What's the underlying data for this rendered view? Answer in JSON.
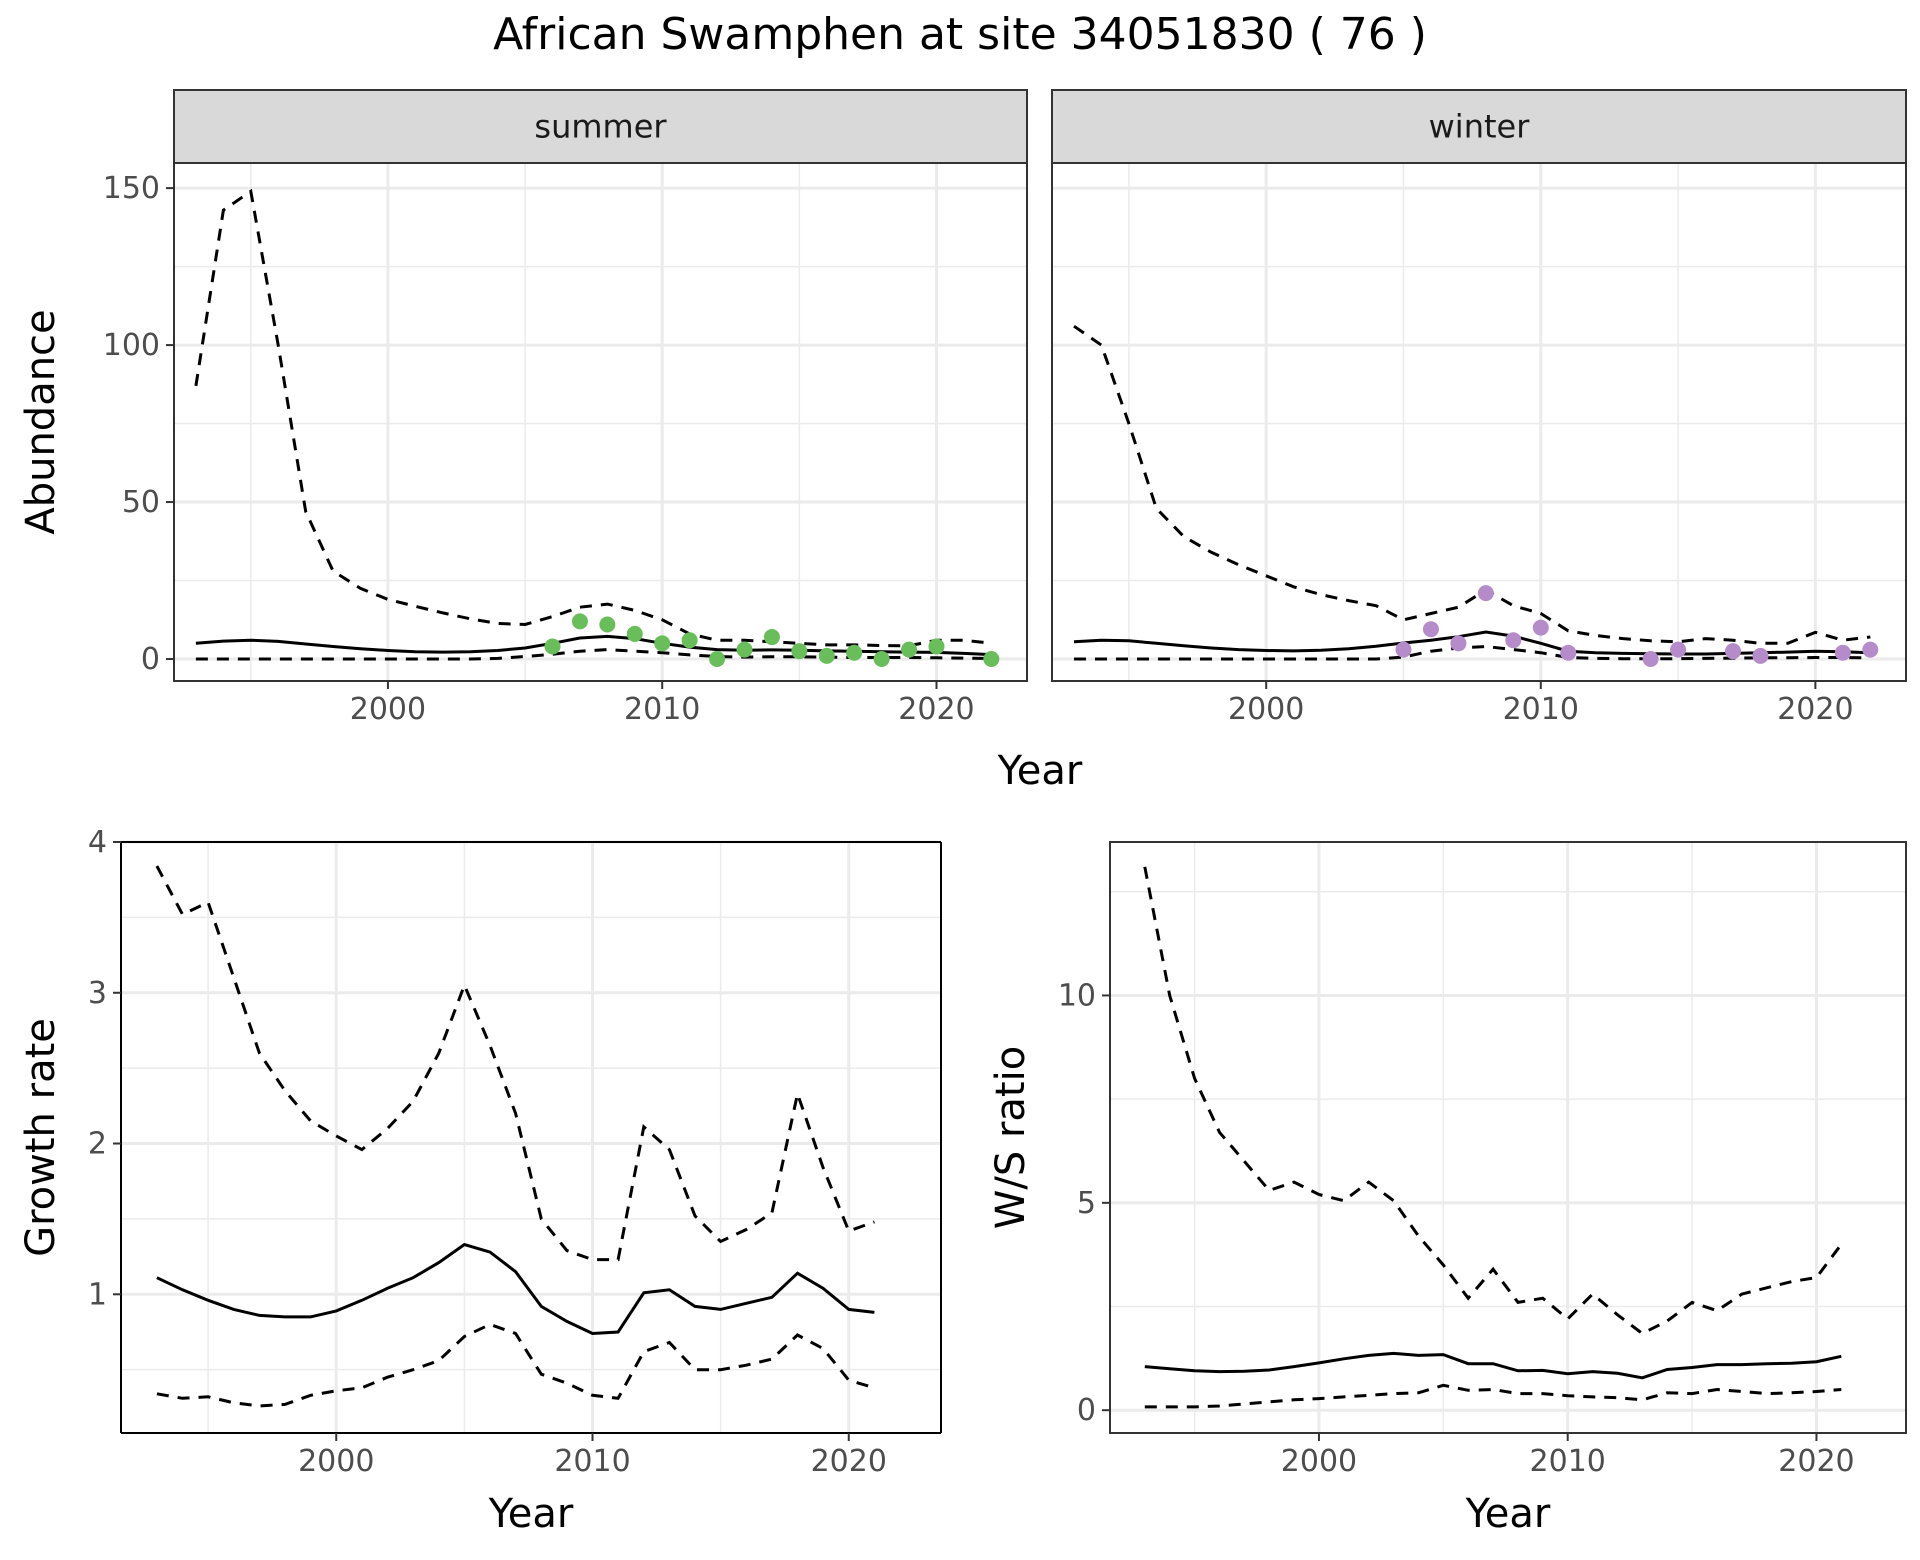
{
  "title": "African Swamphen at site 34051830 ( 76 )",
  "colors": {
    "summer_points": "#6abd5b",
    "winter_points": "#b58bc9",
    "strip_fill": "#d9d9d9"
  },
  "chart_data": [
    {
      "type": "line",
      "panel": "summer",
      "strip": "summer",
      "xlabel": "Year",
      "ylabel": "Abundance",
      "xlim": [
        1992.2,
        2023.3
      ],
      "ylim": [
        -7,
        158
      ],
      "xticks": [
        2000,
        2010,
        2020
      ],
      "yticks": [
        0,
        50,
        100,
        150
      ],
      "x": [
        1993,
        1994,
        1995,
        1996,
        1997,
        1998,
        1999,
        2000,
        2001,
        2002,
        2003,
        2004,
        2005,
        2006,
        2007,
        2008,
        2009,
        2010,
        2011,
        2012,
        2013,
        2014,
        2015,
        2016,
        2017,
        2018,
        2019,
        2020,
        2021,
        2022
      ],
      "estimate": [
        5,
        5.7,
        6,
        5.6,
        4.8,
        4,
        3.3,
        2.7,
        2.3,
        2.2,
        2.3,
        2.7,
        3.5,
        5,
        6.7,
        7.2,
        6.5,
        5,
        3.8,
        3,
        2.8,
        2.9,
        2.8,
        2.6,
        2.5,
        2.3,
        2.2,
        2.1,
        1.8,
        1.4
      ],
      "upper": [
        87,
        143,
        149,
        100,
        47,
        28,
        22.5,
        19,
        16.8,
        14.7,
        12.8,
        11.3,
        11,
        13.5,
        16.5,
        17.5,
        15.5,
        12.5,
        8,
        6,
        6,
        5.5,
        5,
        4.5,
        4.5,
        4.3,
        4.2,
        6,
        6,
        5
      ],
      "lower": [
        0,
        0,
        0,
        0,
        0,
        0,
        0,
        0,
        0,
        0,
        0,
        0.2,
        0.8,
        1.5,
        2.5,
        3,
        2.5,
        2,
        1.3,
        0.8,
        0.6,
        0.7,
        0.7,
        0.6,
        0.5,
        0.5,
        0.5,
        0.4,
        0.3,
        0.2
      ],
      "points_x": [
        2006,
        2007,
        2008,
        2009,
        2010,
        2011,
        2012,
        2013,
        2014,
        2015,
        2016,
        2017,
        2018,
        2019,
        2020,
        2022
      ],
      "points_y": [
        4,
        12,
        11,
        8,
        5,
        6,
        0,
        3,
        7,
        2.5,
        1,
        2,
        0,
        3,
        4,
        0
      ]
    },
    {
      "type": "line",
      "panel": "winter",
      "strip": "winter",
      "xlabel": "Year",
      "ylabel": "Abundance",
      "xlim": [
        1992.2,
        2023.3
      ],
      "ylim": [
        -7,
        158
      ],
      "xticks": [
        2000,
        2010,
        2020
      ],
      "yticks": [
        0,
        50,
        100,
        150
      ],
      "x": [
        1993,
        1994,
        1995,
        1996,
        1997,
        1998,
        1999,
        2000,
        2001,
        2002,
        2003,
        2004,
        2005,
        2006,
        2007,
        2008,
        2009,
        2010,
        2011,
        2012,
        2013,
        2014,
        2015,
        2016,
        2017,
        2018,
        2019,
        2020,
        2021,
        2022
      ],
      "estimate": [
        5.5,
        6,
        5.8,
        5,
        4.2,
        3.5,
        3,
        2.7,
        2.6,
        2.8,
        3.3,
        4.1,
        5.1,
        6,
        7.1,
        8.6,
        7.3,
        5,
        2.5,
        2,
        1.8,
        1.7,
        1.6,
        1.6,
        1.8,
        2,
        2.2,
        2.5,
        2.3,
        2
      ],
      "upper": [
        106,
        100,
        75,
        48,
        39,
        34,
        30,
        26.5,
        23,
        20.5,
        18.6,
        17,
        12.5,
        14.5,
        16.5,
        22,
        17,
        14.5,
        9,
        7.5,
        6.5,
        5.8,
        5.5,
        6.5,
        6,
        5,
        5,
        8.5,
        6,
        7
      ],
      "lower": [
        0,
        0,
        0,
        0,
        0,
        0,
        0,
        0,
        0,
        0,
        0,
        0,
        0.6,
        2.5,
        3.5,
        4,
        3,
        2,
        0.5,
        0.2,
        0.1,
        0.1,
        0.1,
        0.2,
        0.3,
        0.4,
        0.4,
        0.5,
        0.5,
        0.4
      ],
      "points_x": [
        2005,
        2006,
        2007,
        2008,
        2009,
        2010,
        2011,
        2014,
        2015,
        2017,
        2018,
        2021,
        2022
      ],
      "points_y": [
        3,
        9.5,
        5,
        21,
        6,
        10,
        2,
        0,
        3,
        2.5,
        1,
        2,
        3
      ]
    },
    {
      "type": "line",
      "panel": "growth",
      "xlabel": "Year",
      "ylabel": "Growth rate",
      "xlim": [
        1991.6,
        2023.6
      ],
      "ylim": [
        0.08,
        4
      ],
      "xticks": [
        2000,
        2010,
        2020
      ],
      "yticks": [
        1,
        2,
        3,
        4
      ],
      "x": [
        1993,
        1994,
        1995,
        1996,
        1997,
        1998,
        1999,
        2000,
        2001,
        2002,
        2003,
        2004,
        2005,
        2006,
        2007,
        2008,
        2009,
        2010,
        2011,
        2012,
        2013,
        2014,
        2015,
        2016,
        2017,
        2018,
        2019,
        2020,
        2021
      ],
      "estimate": [
        1.11,
        1.03,
        0.96,
        0.9,
        0.86,
        0.85,
        0.85,
        0.89,
        0.96,
        1.04,
        1.11,
        1.21,
        1.33,
        1.28,
        1.15,
        0.92,
        0.82,
        0.74,
        0.75,
        1.01,
        1.03,
        0.92,
        0.9,
        0.94,
        0.98,
        1.14,
        1.04,
        0.9,
        0.88
      ],
      "upper": [
        3.84,
        3.52,
        3.6,
        3.1,
        2.6,
        2.35,
        2.15,
        2.05,
        1.96,
        2.1,
        2.28,
        2.6,
        3.05,
        2.65,
        2.2,
        1.5,
        1.29,
        1.23,
        1.23,
        2.11,
        1.96,
        1.52,
        1.35,
        1.43,
        1.54,
        2.33,
        1.84,
        1.42,
        1.48
      ],
      "lower": [
        0.34,
        0.31,
        0.32,
        0.28,
        0.26,
        0.27,
        0.33,
        0.36,
        0.38,
        0.45,
        0.5,
        0.56,
        0.72,
        0.8,
        0.74,
        0.47,
        0.41,
        0.33,
        0.31,
        0.62,
        0.68,
        0.5,
        0.5,
        0.53,
        0.57,
        0.73,
        0.64,
        0.43,
        0.38
      ]
    },
    {
      "type": "line",
      "panel": "ws_ratio",
      "xlabel": "Year",
      "ylabel": "W/S ratio",
      "xlim": [
        1991.6,
        2023.6
      ],
      "ylim": [
        -0.55,
        13.7
      ],
      "xticks": [
        2000,
        2010,
        2020
      ],
      "yticks": [
        0,
        5,
        10
      ],
      "x": [
        1993,
        1994,
        1995,
        1996,
        1997,
        1998,
        1999,
        2000,
        2001,
        2002,
        2003,
        2004,
        2005,
        2006,
        2007,
        2008,
        2009,
        2010,
        2011,
        2012,
        2013,
        2014,
        2015,
        2016,
        2017,
        2018,
        2019,
        2020,
        2021
      ],
      "estimate": [
        1.05,
        1,
        0.95,
        0.93,
        0.94,
        0.97,
        1.05,
        1.14,
        1.24,
        1.32,
        1.37,
        1.32,
        1.34,
        1.12,
        1.12,
        0.95,
        0.96,
        0.88,
        0.93,
        0.89,
        0.78,
        0.98,
        1.03,
        1.1,
        1.1,
        1.12,
        1.13,
        1.17,
        1.3
      ],
      "upper": [
        13.1,
        10,
        8,
        6.7,
        6,
        5.3,
        5.5,
        5.2,
        5.05,
        5.5,
        5.05,
        4.2,
        3.5,
        2.7,
        3.4,
        2.6,
        2.7,
        2.2,
        2.8,
        2.3,
        1.85,
        2.15,
        2.6,
        2.4,
        2.8,
        2.95,
        3.1,
        3.2,
        4
      ],
      "lower": [
        0.08,
        0.08,
        0.08,
        0.1,
        0.15,
        0.2,
        0.25,
        0.28,
        0.32,
        0.36,
        0.4,
        0.42,
        0.6,
        0.48,
        0.5,
        0.4,
        0.4,
        0.35,
        0.32,
        0.3,
        0.25,
        0.42,
        0.4,
        0.5,
        0.45,
        0.4,
        0.42,
        0.45,
        0.5
      ]
    }
  ]
}
